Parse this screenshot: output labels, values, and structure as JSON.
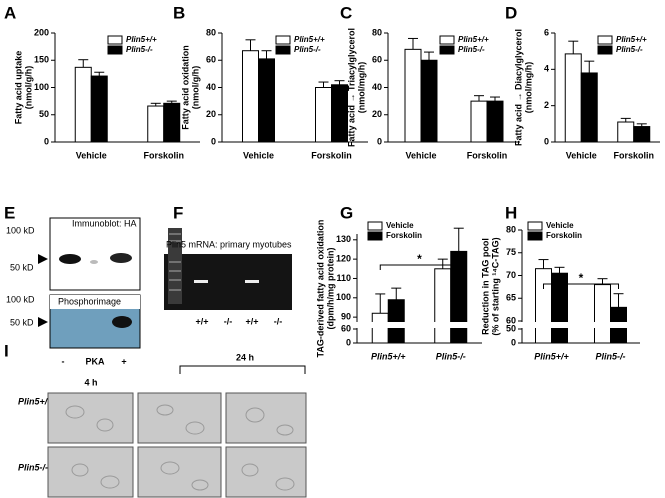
{
  "chart_data": [
    {
      "type": "bar",
      "panel": "A",
      "ylabel": [
        "Fatty acid uptake",
        "(nmol/g/h)"
      ],
      "categories": [
        "Vehicle",
        "Forskolin"
      ],
      "series": [
        {
          "name": "Plin5+/+",
          "color": "#ffffff",
          "values": [
            137,
            66
          ],
          "errors": [
            14,
            5
          ]
        },
        {
          "name": "Plin5-/-",
          "color": "#000000",
          "values": [
            121,
            71
          ],
          "errors": [
            7,
            4
          ]
        }
      ],
      "ylim": [
        0,
        200
      ],
      "yticks": [
        0,
        50,
        100,
        150,
        200
      ],
      "legend": "upper right"
    },
    {
      "type": "bar",
      "panel": "B",
      "ylabel": [
        "Fatty acid oxidation",
        "(nmol/g/h)"
      ],
      "categories": [
        "Vehicle",
        "Forskolin"
      ],
      "series": [
        {
          "name": "Plin5+/+",
          "color": "#ffffff",
          "values": [
            67,
            40
          ],
          "errors": [
            8,
            4
          ]
        },
        {
          "name": "Plin5-/-",
          "color": "#000000",
          "values": [
            61,
            42
          ],
          "errors": [
            6,
            3
          ]
        }
      ],
      "ylim": [
        0,
        80
      ],
      "yticks": [
        0,
        20,
        40,
        60,
        80
      ],
      "legend": "upper right"
    },
    {
      "type": "bar",
      "panel": "C",
      "ylabel": [
        "Fatty acid → Triacylglycerol",
        "(nmol/mg/h)"
      ],
      "categories": [
        "Vehicle",
        "Forskolin"
      ],
      "series": [
        {
          "name": "Plin5+/+",
          "color": "#ffffff",
          "values": [
            68,
            30
          ],
          "errors": [
            8,
            4
          ]
        },
        {
          "name": "Plin5-/-",
          "color": "#000000",
          "values": [
            60,
            30
          ],
          "errors": [
            6,
            3
          ]
        }
      ],
      "ylim": [
        0,
        80
      ],
      "yticks": [
        0,
        20,
        40,
        60,
        80
      ],
      "legend": "upper right"
    },
    {
      "type": "bar",
      "panel": "D",
      "ylabel": [
        "Fatty acid → Diacylglycerol",
        "(nmol/mg/h)"
      ],
      "categories": [
        "Vehicle",
        "Forskolin"
      ],
      "series": [
        {
          "name": "Plin5+/+",
          "color": "#ffffff",
          "values": [
            4.85,
            1.1
          ],
          "errors": [
            0.7,
            0.2
          ]
        },
        {
          "name": "Plin5-/-",
          "color": "#000000",
          "values": [
            3.8,
            0.85
          ],
          "errors": [
            0.65,
            0.15
          ]
        }
      ],
      "ylim": [
        0,
        6
      ],
      "yticks": [
        0,
        2,
        4,
        6
      ],
      "legend": "upper right"
    },
    {
      "type": "bar",
      "panel": "G",
      "ylabel": [
        "TAG-derived fatty acid oxidation",
        "(dpm/h/mg protein)"
      ],
      "categories": [
        "Plin5+/+",
        "Plin5-/-"
      ],
      "series": [
        {
          "name": "Vehicle",
          "color": "#ffffff",
          "values": [
            92,
            115
          ],
          "errors": [
            10,
            5
          ]
        },
        {
          "name": "Forskolin",
          "color": "#000000",
          "values": [
            99,
            124
          ],
          "errors": [
            6,
            12
          ]
        }
      ],
      "ylim": [
        0,
        133
      ],
      "ybreak": [
        60,
        88
      ],
      "yticks": [
        0,
        60,
        90,
        100,
        110,
        120,
        130
      ],
      "legend": "upper left",
      "significance": "*"
    },
    {
      "type": "bar",
      "panel": "H",
      "ylabel": [
        "Reduction in TAG pool",
        "(% of starting ¹⁴C-TAG)"
      ],
      "categories": [
        "Plin5+/+",
        "Plin5-/-"
      ],
      "series": [
        {
          "name": "Vehicle",
          "color": "#ffffff",
          "values": [
            71.5,
            68
          ],
          "errors": [
            2,
            1.3
          ]
        },
        {
          "name": "Forskolin",
          "color": "#000000",
          "values": [
            70.5,
            63
          ],
          "errors": [
            1.3,
            3
          ]
        }
      ],
      "ylim": [
        0,
        80
      ],
      "ybreak": [
        50,
        60
      ],
      "yticks": [
        0,
        50,
        60,
        65,
        70,
        75,
        80
      ],
      "legend": "upper left",
      "significance": "*"
    }
  ],
  "panel_E": {
    "label": "E",
    "immunoblot": "Immunoblot: HA",
    "phosphorimage": "Phosphorimage",
    "markers": [
      "100 kD",
      "50 kD",
      "100 kD",
      "50 kD"
    ],
    "lanes": [
      "-",
      "PKA",
      "+"
    ]
  },
  "panel_F": {
    "label": "F",
    "title": "Plin5 mRNA: primary myotubes",
    "lanes": [
      "+/+",
      "-/-",
      "+/+",
      "-/-"
    ]
  },
  "panel_I": {
    "label": "I",
    "times": [
      "4 h",
      "24 h"
    ],
    "rows": [
      "Plin5+/+",
      "Plin5-/-"
    ]
  }
}
